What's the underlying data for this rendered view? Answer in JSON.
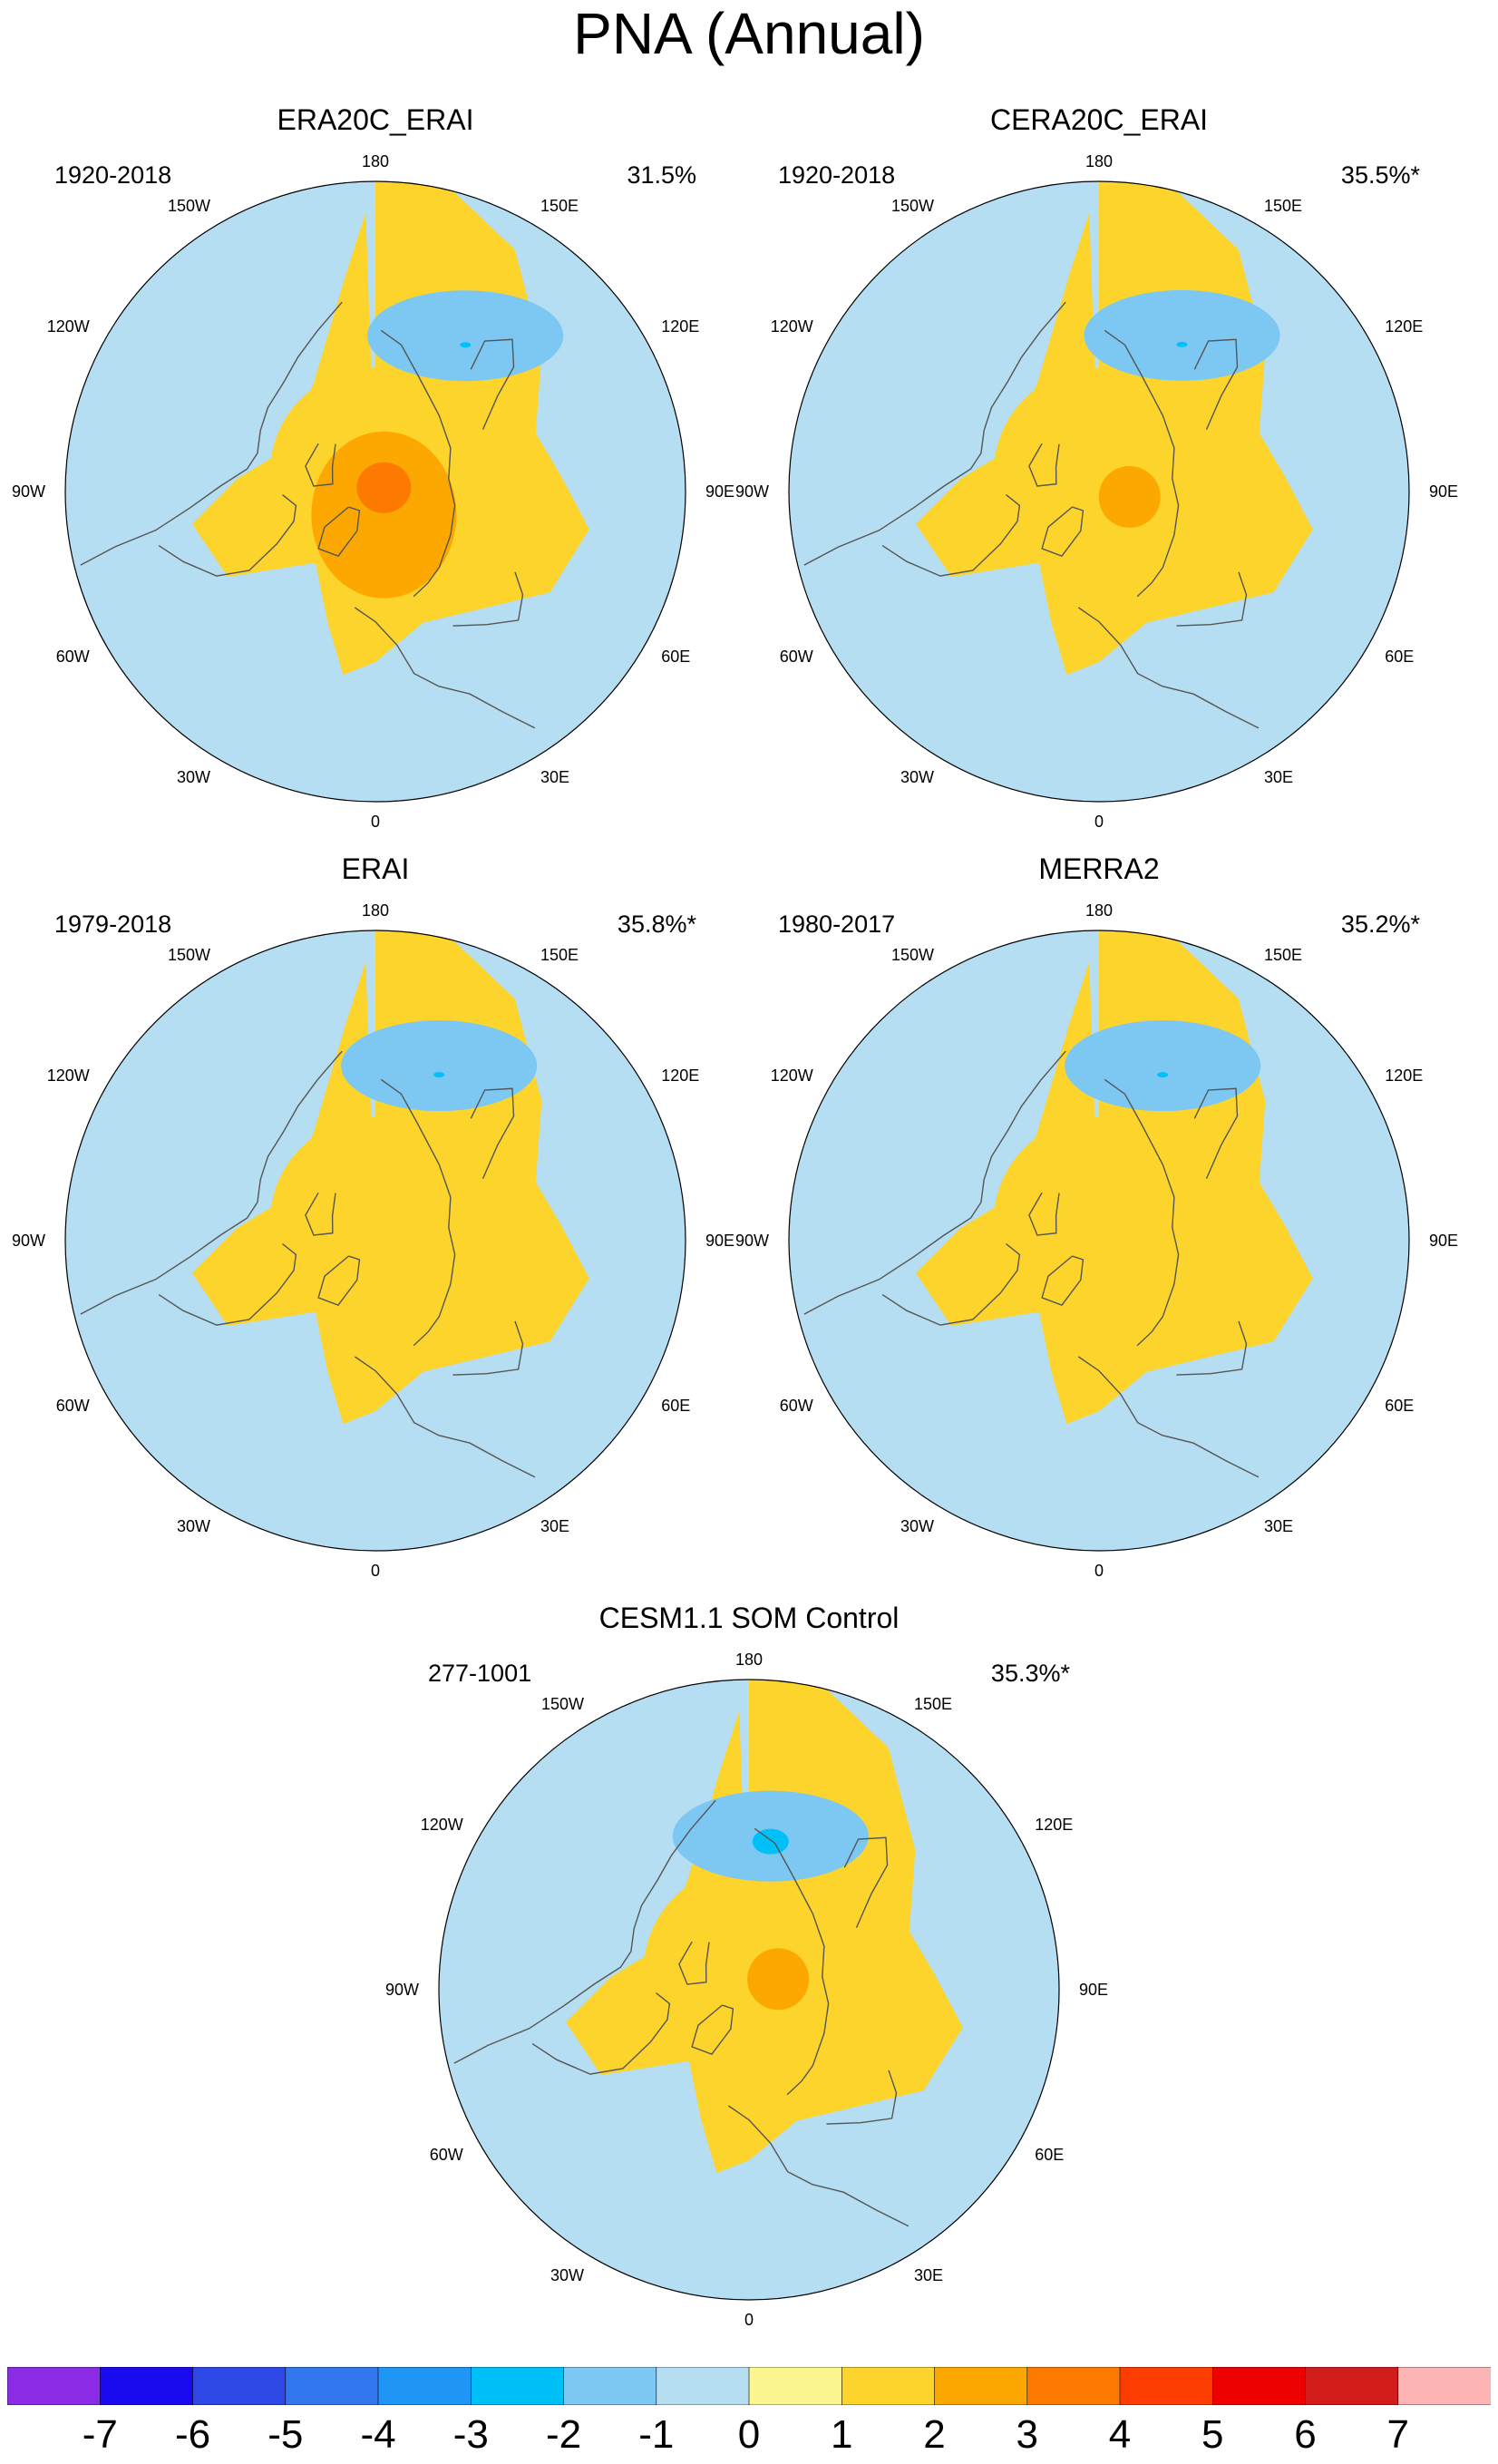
{
  "title": "PNA (Annual)",
  "panels": [
    {
      "title": "ERA20C_ERAI",
      "period": "1920-2018",
      "variance": "31.5%",
      "pattern": {
        "neg_center": [
          150,
          0.58
        ],
        "neg_value": -2,
        "pos_center": [
          20,
          0.08
        ],
        "pos_value": 3,
        "lobe_positive": "left"
      }
    },
    {
      "title": "CERA20C_ERAI",
      "period": "1920-2018",
      "variance": "35.5%*",
      "pattern": {
        "neg_center": [
          152,
          0.57
        ],
        "neg_value": -2,
        "pos_center": [
          80,
          0.1
        ],
        "pos_value": 2,
        "lobe_positive": "left"
      }
    },
    {
      "title": "ERAI",
      "period": "1979-2018",
      "variance": "35.8%*",
      "pattern": {
        "neg_center": [
          160,
          0.6
        ],
        "neg_value": -2,
        "pos_center": null,
        "pos_value": 1,
        "lobe_positive": "left"
      }
    },
    {
      "title": "MERRA2",
      "period": "1980-2017",
      "variance": "35.2%*",
      "pattern": {
        "neg_center": [
          160,
          0.6
        ],
        "neg_value": -2,
        "pos_center": null,
        "pos_value": 1,
        "lobe_positive": "left"
      }
    },
    {
      "title": "CESM1.1 SOM Control",
      "period": "277-1001",
      "variance": "35.3%*",
      "pattern": {
        "neg_center": [
          172,
          0.5
        ],
        "neg_value": -3,
        "pos_center": [
          110,
          0.1
        ],
        "pos_value": 2,
        "lobe_positive": "left"
      }
    }
  ],
  "longitude_labels": [
    "180",
    "150E",
    "120E",
    "90E",
    "60E",
    "30E",
    "0",
    "30W",
    "60W",
    "90W",
    "120W",
    "150W"
  ],
  "colorbar": {
    "labels": [
      "-7",
      "-6",
      "-5",
      "-4",
      "-3",
      "-2",
      "-1",
      "0",
      "1",
      "2",
      "3",
      "4",
      "5",
      "6",
      "7"
    ],
    "colors": [
      "#8c2be6",
      "#1a0af0",
      "#2e48e6",
      "#3377ee",
      "#1f96f6",
      "#00c0f8",
      "#7cc8f2",
      "#b6def2",
      "#fbf690",
      "#fcd42c",
      "#fca800",
      "#fc7a00",
      "#fc3c00",
      "#ef0000",
      "#d21c1c",
      "#fcb4b4"
    ]
  },
  "chart_data": {
    "type": "heatmap",
    "title": "PNA (Annual)",
    "projection": "north polar stereographic",
    "levels": [
      -7,
      -6,
      -5,
      -4,
      -3,
      -2,
      -1,
      0,
      1,
      2,
      3,
      4,
      5,
      6,
      7
    ],
    "panels": [
      "ERA20C_ERAI",
      "CERA20C_ERAI",
      "ERAI",
      "MERRA2",
      "CESM1.1 SOM Control"
    ],
    "explained_variance": [
      "31.5%",
      "35.5%*",
      "35.8%*",
      "35.2%*",
      "35.3%*"
    ]
  }
}
